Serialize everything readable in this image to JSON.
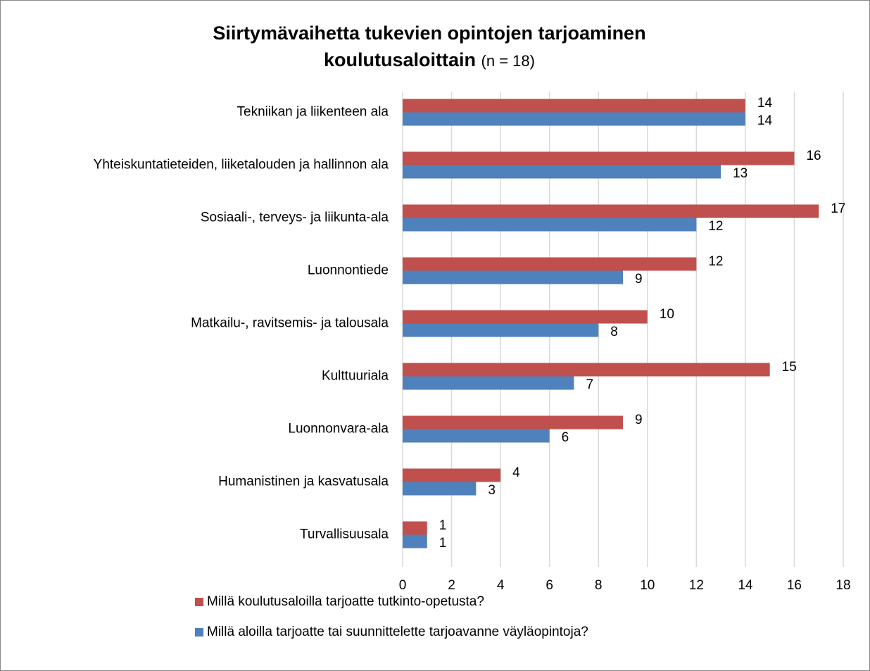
{
  "chart_data": {
    "type": "bar",
    "orientation": "horizontal",
    "title": "Siirtymävaihetta tukevien opintojen tarjoaminen koulutusaloittain",
    "subtitle": "(n = 18)",
    "categories": [
      "Tekniikan ja liikenteen ala",
      "Yhteiskuntatieteiden, liiketalouden ja hallinnon ala",
      "Sosiaali-, terveys- ja liikunta-ala",
      "Luonnontiede",
      "Matkailu-, ravitsemis- ja talousala",
      "Kulttuuriala",
      "Luonnonvara-ala",
      "Humanistinen ja kasvatusala",
      "Turvallisuusala"
    ],
    "series": [
      {
        "name": "Millä koulutusaloilla tarjoatte tutkinto-opetusta?",
        "color": "#c0504d",
        "values": [
          14,
          16,
          17,
          12,
          10,
          15,
          9,
          4,
          1
        ]
      },
      {
        "name": "Millä aloilla tarjoatte tai suunnittelette tarjoavanne väyläopintoja?",
        "color": "#4f81bd",
        "values": [
          14,
          13,
          12,
          9,
          8,
          7,
          6,
          3,
          1
        ]
      }
    ],
    "xlim": [
      0,
      18
    ],
    "xticks": [
      0,
      2,
      4,
      6,
      8,
      10,
      12,
      14,
      16,
      18
    ],
    "grid": true,
    "legend": "bottom"
  }
}
